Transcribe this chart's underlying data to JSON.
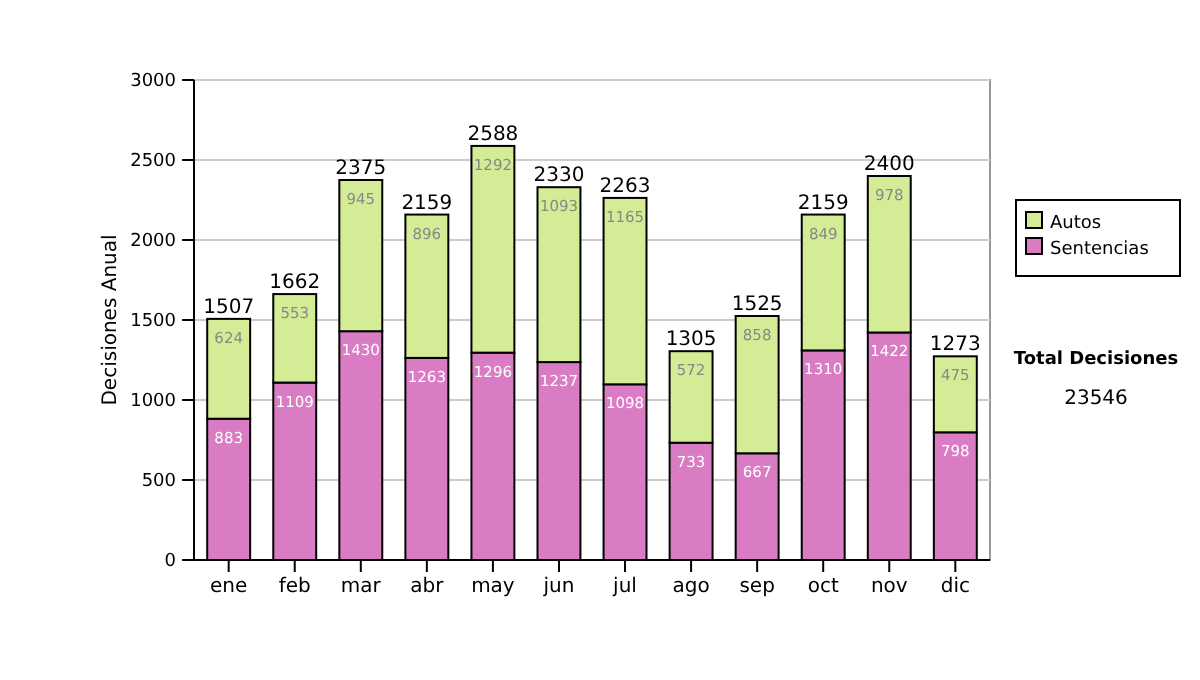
{
  "chart_data": {
    "type": "bar",
    "stacked": true,
    "ylabel": "Decisiones Anual",
    "categories": [
      "ene",
      "feb",
      "mar",
      "abr",
      "may",
      "jun",
      "jul",
      "ago",
      "sep",
      "oct",
      "nov",
      "dic"
    ],
    "series": [
      {
        "name": "Sentencias",
        "color": "#d97cc4",
        "values": [
          883,
          1109,
          1430,
          1263,
          1296,
          1237,
          1098,
          733,
          667,
          1310,
          1422,
          798
        ]
      },
      {
        "name": "Autos",
        "color": "#d5ec96",
        "values": [
          624,
          553,
          945,
          896,
          1292,
          1093,
          1165,
          572,
          858,
          849,
          978,
          475
        ]
      }
    ],
    "totals": [
      "1507",
      "1662",
      "2375",
      "2159",
      "2588",
      "2330",
      "2263",
      "1305",
      "1525",
      "2159",
      "2400",
      "1273"
    ],
    "data_labels": true,
    "ylim": [
      0,
      3000
    ],
    "yticks": [
      0,
      500,
      1000,
      1500,
      2000,
      2500,
      3000
    ],
    "grid": "y",
    "legend": "right",
    "annotations": [
      "Total Decisiones",
      "23546"
    ]
  }
}
